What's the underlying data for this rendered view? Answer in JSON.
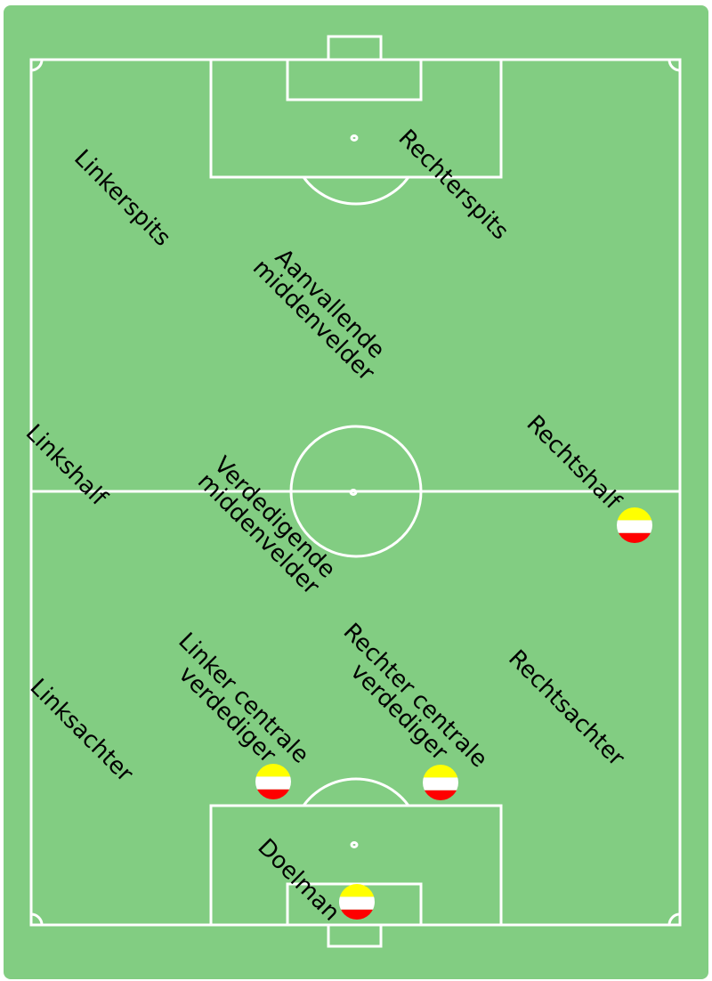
{
  "colors": {
    "grass": "#82cd82",
    "lines": "#ffffff",
    "text": "#000000",
    "badge_top": "#ffff00",
    "badge_middle": "#ffffff",
    "badge_bottom": "#ff0000"
  },
  "positions": {
    "linkerspits": [
      "Linkerspits"
    ],
    "rechterspits": [
      "Rechterspits"
    ],
    "aanvallende_middenvelder": [
      "Aanvallende",
      "middenvelder"
    ],
    "linkshalf": [
      "Linkshalf"
    ],
    "rechtshalf": [
      "Rechtshalf"
    ],
    "verdedigende_middenvelder": [
      "Verdedigende",
      "middenvelder"
    ],
    "linksachter": [
      "Linksachter"
    ],
    "linker_centrale_verdediger": [
      "Linker centrale",
      "verdediger"
    ],
    "rechter_centrale_verdediger": [
      "Rechter centrale",
      "verdediger"
    ],
    "rechtsachter": [
      "Rechtsachter"
    ],
    "doelman": [
      "Doelman"
    ]
  },
  "occupied_positions": [
    "rechtshalf",
    "linker_centrale_verdediger",
    "rechter_centrale_verdediger",
    "doelman"
  ]
}
